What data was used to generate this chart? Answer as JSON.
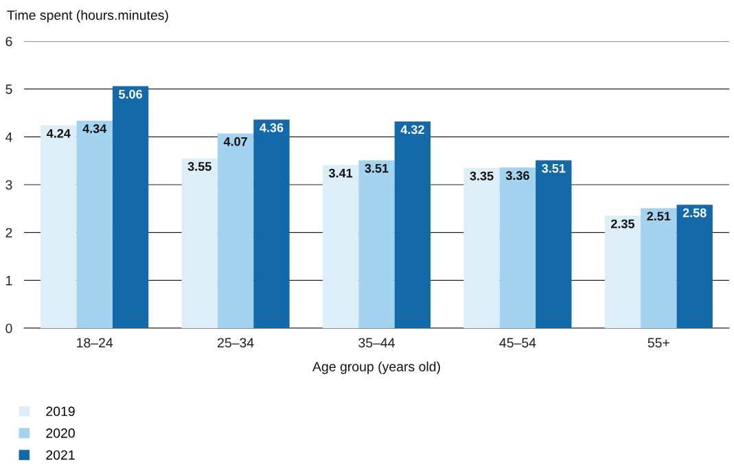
{
  "chart_data": {
    "type": "bar",
    "ylabel": "Time spent (hours.minutes)",
    "xlabel": "Age group (years old)",
    "categories": [
      "18–24",
      "25–34",
      "35–44",
      "45–54",
      "55+"
    ],
    "series": [
      {
        "name": "2019",
        "color": "#ddeef9",
        "values": [
          4.24,
          3.55,
          3.41,
          3.35,
          2.35
        ]
      },
      {
        "name": "2020",
        "color": "#a3d3ee",
        "values": [
          4.34,
          4.07,
          3.51,
          3.36,
          2.51
        ]
      },
      {
        "name": "2021",
        "color": "#1469a9",
        "values": [
          5.06,
          4.36,
          4.32,
          3.51,
          2.58
        ]
      }
    ],
    "ylim": [
      0,
      6
    ],
    "yticks": [
      0,
      1,
      2,
      3,
      4,
      5,
      6
    ],
    "grid": "y",
    "legend": "bottom left",
    "data_labels": true
  }
}
